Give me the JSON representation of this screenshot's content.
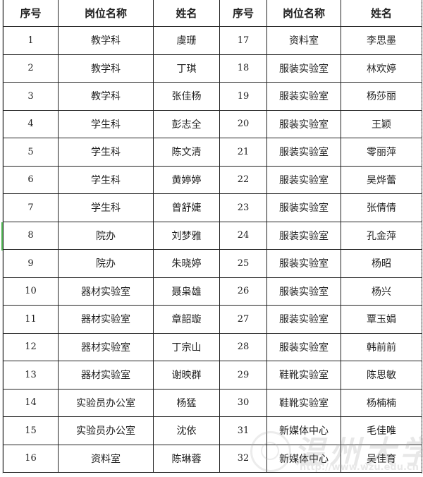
{
  "headers": [
    "序号",
    "岗位名称",
    "姓名",
    "序号",
    "岗位名称",
    "姓名"
  ],
  "rows": [
    {
      "left": {
        "no": "1",
        "post": "教学科",
        "name": "虞珊"
      },
      "right": {
        "no": "17",
        "post": "资料室",
        "name": "李思墨"
      }
    },
    {
      "left": {
        "no": "2",
        "post": "教学科",
        "name": "丁琪"
      },
      "right": {
        "no": "18",
        "post": "服装实验室",
        "name": "林欢婷"
      }
    },
    {
      "left": {
        "no": "3",
        "post": "教学科",
        "name": "张佳杨"
      },
      "right": {
        "no": "19",
        "post": "服装实验室",
        "name": "杨莎丽"
      }
    },
    {
      "left": {
        "no": "4",
        "post": "学生科",
        "name": "彭志全"
      },
      "right": {
        "no": "20",
        "post": "服装实验室",
        "name": "王颖"
      }
    },
    {
      "left": {
        "no": "5",
        "post": "学生科",
        "name": "陈文清"
      },
      "right": {
        "no": "21",
        "post": "服装实验室",
        "name": "零丽萍"
      }
    },
    {
      "left": {
        "no": "6",
        "post": "学生科",
        "name": "黄婷婷"
      },
      "right": {
        "no": "22",
        "post": "服装实验室",
        "name": "吴烨蕾"
      }
    },
    {
      "left": {
        "no": "7",
        "post": "学生科",
        "name": "曾舒婕"
      },
      "right": {
        "no": "23",
        "post": "服装实验室",
        "name": "张倩倩"
      }
    },
    {
      "left": {
        "no": "8",
        "post": "院办",
        "name": "刘梦雅"
      },
      "right": {
        "no": "24",
        "post": "服装实验室",
        "name": "孔金萍"
      }
    },
    {
      "left": {
        "no": "9",
        "post": "院办",
        "name": "朱晓婷"
      },
      "right": {
        "no": "25",
        "post": "服装实验室",
        "name": "杨昭"
      }
    },
    {
      "left": {
        "no": "10",
        "post": "器材实验室",
        "name": "聂枭雄"
      },
      "right": {
        "no": "26",
        "post": "服装实验室",
        "name": "杨兴"
      }
    },
    {
      "left": {
        "no": "11",
        "post": "器材实验室",
        "name": "章韶璇"
      },
      "right": {
        "no": "27",
        "post": "服装实验室",
        "name": "覃玉娟"
      }
    },
    {
      "left": {
        "no": "12",
        "post": "器材实验室",
        "name": "丁宗山"
      },
      "right": {
        "no": "28",
        "post": "服装实验室",
        "name": "韩前前"
      }
    },
    {
      "left": {
        "no": "13",
        "post": "器材实验室",
        "name": "谢映群"
      },
      "right": {
        "no": "29",
        "post": "鞋靴实验室",
        "name": "陈思敏"
      }
    },
    {
      "left": {
        "no": "14",
        "post": "实验员办公室",
        "name": "杨猛"
      },
      "right": {
        "no": "30",
        "post": "鞋靴实验室",
        "name": "杨楠楠"
      }
    },
    {
      "left": {
        "no": "15",
        "post": "实验员办公室",
        "name": "沈依"
      },
      "right": {
        "no": "31",
        "post": "新媒体中心",
        "name": "毛佳唯"
      }
    },
    {
      "left": {
        "no": "16",
        "post": "资料室",
        "name": "陈琳蓉"
      },
      "right": {
        "no": "32",
        "post": "新媒体中心",
        "name": "吴佳育"
      }
    }
  ],
  "watermark": {
    "text": "温州大学",
    "url": "http://www.wzu.edu.cn"
  }
}
